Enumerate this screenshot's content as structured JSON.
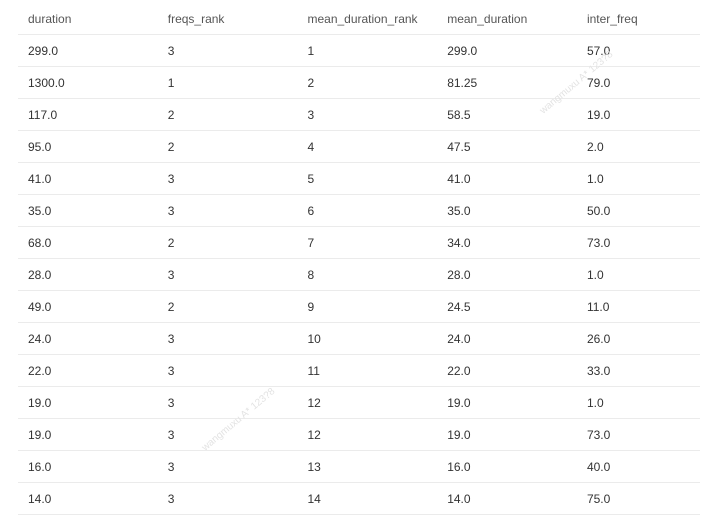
{
  "table": {
    "columns": [
      "duration",
      "freqs_rank",
      "mean_duration_rank",
      "mean_duration",
      "inter_freq"
    ],
    "rows": [
      [
        "299.0",
        "3",
        "1",
        "299.0",
        "57.0"
      ],
      [
        "1300.0",
        "1",
        "2",
        "81.25",
        "79.0"
      ],
      [
        "117.0",
        "2",
        "3",
        "58.5",
        "19.0"
      ],
      [
        "95.0",
        "2",
        "4",
        "47.5",
        "2.0"
      ],
      [
        "41.0",
        "3",
        "5",
        "41.0",
        "1.0"
      ],
      [
        "35.0",
        "3",
        "6",
        "35.0",
        "50.0"
      ],
      [
        "68.0",
        "2",
        "7",
        "34.0",
        "73.0"
      ],
      [
        "28.0",
        "3",
        "8",
        "28.0",
        "1.0"
      ],
      [
        "49.0",
        "2",
        "9",
        "24.5",
        "11.0"
      ],
      [
        "24.0",
        "3",
        "10",
        "24.0",
        "26.0"
      ],
      [
        "22.0",
        "3",
        "11",
        "22.0",
        "33.0"
      ],
      [
        "19.0",
        "3",
        "12",
        "19.0",
        "1.0"
      ],
      [
        "19.0",
        "3",
        "12",
        "19.0",
        "73.0"
      ],
      [
        "16.0",
        "3",
        "13",
        "16.0",
        "40.0"
      ],
      [
        "14.0",
        "3",
        "14",
        "14.0",
        "75.0"
      ]
    ]
  },
  "watermarks": [
    "wangmuxu  A* 123?8",
    "wangmuxu  A* 123?8"
  ]
}
